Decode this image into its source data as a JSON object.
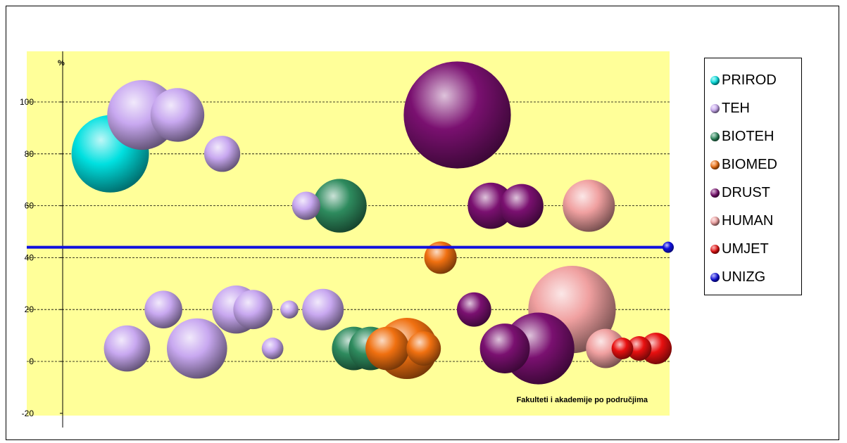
{
  "chart_data": {
    "type": "bubble",
    "ylabel": "%",
    "annotation": "Fakulteti i akademije po područjima",
    "ylim": [
      -20,
      120
    ],
    "yticks": [
      "-20",
      "0",
      "20",
      "40",
      "60",
      "80",
      "100"
    ],
    "grid": "horizontal dashed",
    "legend_position": "right",
    "background": "#ffff99",
    "reference_line": {
      "series": "UNIZG",
      "y": 44
    },
    "series": [
      {
        "name": "PRIROD",
        "color": "#00e0e0",
        "points": [
          {
            "x": 8.5,
            "y": 80,
            "size": 100
          }
        ]
      },
      {
        "name": "TEH",
        "color": "#c8a8f0",
        "points": [
          {
            "x": 14.2,
            "y": 95,
            "size": 80
          },
          {
            "x": 20.5,
            "y": 95,
            "size": 45
          },
          {
            "x": 28.5,
            "y": 80,
            "size": 18
          },
          {
            "x": 11.5,
            "y": 5,
            "size": 32
          },
          {
            "x": 18.0,
            "y": 20,
            "size": 20
          },
          {
            "x": 24.0,
            "y": 5,
            "size": 58
          },
          {
            "x": 31.0,
            "y": 20,
            "size": 35
          },
          {
            "x": 34.0,
            "y": 20,
            "size": 22
          },
          {
            "x": 37.5,
            "y": 5,
            "size": 5
          },
          {
            "x": 40.5,
            "y": 20,
            "size": 3
          },
          {
            "x": 43.5,
            "y": 60,
            "size": 10
          },
          {
            "x": 46.5,
            "y": 20,
            "size": 25
          }
        ]
      },
      {
        "name": "BIOTEH",
        "color": "#2e8b5e",
        "points": [
          {
            "x": 49.5,
            "y": 60,
            "size": 45
          },
          {
            "x": 52.0,
            "y": 5,
            "size": 28
          },
          {
            "x": 55.0,
            "y": 5,
            "size": 28
          }
        ]
      },
      {
        "name": "BIOMED",
        "color": "#f07010",
        "points": [
          {
            "x": 67.5,
            "y": 40,
            "size": 14
          },
          {
            "x": 58.0,
            "y": 5,
            "size": 28
          },
          {
            "x": 61.5,
            "y": 5,
            "size": 60
          },
          {
            "x": 64.5,
            "y": 5,
            "size": 16
          }
        ]
      },
      {
        "name": "DRUST",
        "color": "#7a1070",
        "points": [
          {
            "x": 70.5,
            "y": 95,
            "size": 200
          },
          {
            "x": 76.5,
            "y": 60,
            "size": 32
          },
          {
            "x": 82.0,
            "y": 60,
            "size": 28
          },
          {
            "x": 73.5,
            "y": 20,
            "size": 16
          },
          {
            "x": 79.0,
            "y": 5,
            "size": 38
          },
          {
            "x": 85.0,
            "y": 5,
            "size": 85
          }
        ]
      },
      {
        "name": "HUMAN",
        "color": "#f0a0a0",
        "points": [
          {
            "x": 94.0,
            "y": 60,
            "size": 42
          },
          {
            "x": 91.0,
            "y": 20,
            "size": 130
          },
          {
            "x": 97.0,
            "y": 5,
            "size": 22
          }
        ]
      },
      {
        "name": "UMJET",
        "color": "#e81010",
        "points": [
          {
            "x": 100.0,
            "y": 5,
            "size": 5
          },
          {
            "x": 103.0,
            "y": 5,
            "size": 7
          },
          {
            "x": 106.0,
            "y": 5,
            "size": 13
          }
        ]
      },
      {
        "name": "UNIZG",
        "color": "#1010e0",
        "points": [
          {
            "x": 109.0,
            "y": 44,
            "size": 4
          }
        ]
      }
    ]
  }
}
